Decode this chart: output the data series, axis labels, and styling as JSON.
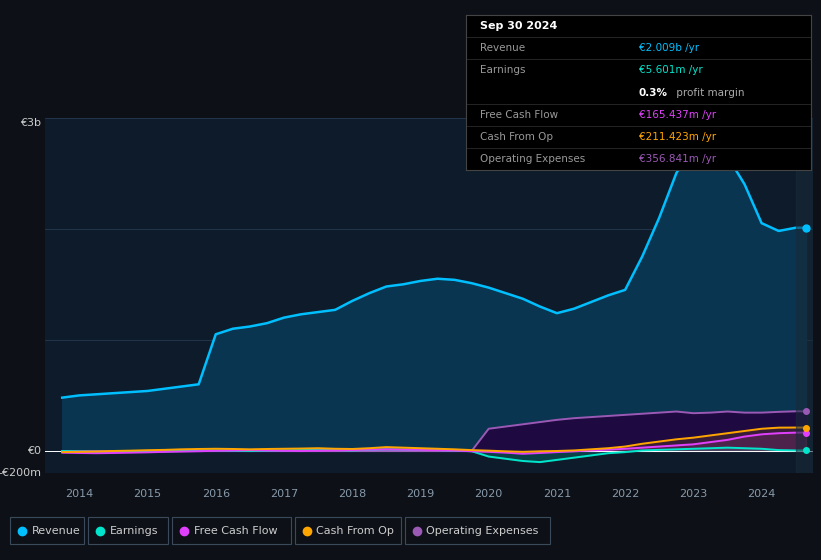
{
  "background_color": "#0d1117",
  "plot_bg_color": "#0d1b2a",
  "grid_color": "#253a50",
  "title_box": {
    "date": "Sep 30 2024",
    "revenue": "€2.009b /yr",
    "earnings": "€5.601m /yr",
    "margin": "0.3% profit margin",
    "fcf": "€165.437m /yr",
    "cash_from_op": "€211.423m /yr",
    "op_expenses": "€356.841m /yr"
  },
  "ylabel_top": "€3b",
  "ylabel_zero": "€0",
  "ylabel_neg": "-€200m",
  "years": [
    2013.75,
    2014.0,
    2014.25,
    2014.5,
    2014.75,
    2015.0,
    2015.25,
    2015.5,
    2015.75,
    2016.0,
    2016.25,
    2016.5,
    2016.75,
    2017.0,
    2017.25,
    2017.5,
    2017.75,
    2018.0,
    2018.25,
    2018.5,
    2018.75,
    2019.0,
    2019.25,
    2019.5,
    2019.75,
    2020.0,
    2020.25,
    2020.5,
    2020.75,
    2021.0,
    2021.25,
    2021.5,
    2021.75,
    2022.0,
    2022.25,
    2022.5,
    2022.75,
    2023.0,
    2023.25,
    2023.5,
    2023.75,
    2024.0,
    2024.25,
    2024.5,
    2024.65
  ],
  "revenue": [
    480,
    500,
    510,
    520,
    530,
    540,
    560,
    580,
    600,
    1050,
    1100,
    1120,
    1150,
    1200,
    1230,
    1250,
    1270,
    1350,
    1420,
    1480,
    1500,
    1530,
    1550,
    1540,
    1510,
    1470,
    1420,
    1370,
    1300,
    1240,
    1280,
    1340,
    1400,
    1450,
    1750,
    2100,
    2500,
    2750,
    2800,
    2650,
    2400,
    2050,
    1980,
    2009,
    2009
  ],
  "earnings": [
    0,
    -5,
    -8,
    -10,
    -8,
    -5,
    -3,
    0,
    3,
    5,
    3,
    0,
    3,
    5,
    8,
    10,
    8,
    5,
    10,
    15,
    12,
    10,
    8,
    3,
    -2,
    -50,
    -70,
    -90,
    -100,
    -80,
    -60,
    -40,
    -20,
    -10,
    5,
    10,
    15,
    20,
    25,
    30,
    25,
    20,
    8,
    5,
    5.6
  ],
  "fcf": [
    -15,
    -18,
    -20,
    -18,
    -15,
    -12,
    -8,
    -5,
    -2,
    2,
    5,
    8,
    5,
    2,
    0,
    3,
    5,
    8,
    12,
    15,
    12,
    10,
    7,
    3,
    -2,
    -8,
    -15,
    -25,
    -18,
    -10,
    -3,
    5,
    12,
    20,
    30,
    40,
    50,
    60,
    80,
    100,
    130,
    150,
    160,
    165,
    165
  ],
  "cash_from_op": [
    -10,
    -8,
    -5,
    0,
    3,
    7,
    10,
    15,
    18,
    20,
    18,
    15,
    18,
    20,
    22,
    25,
    20,
    18,
    25,
    35,
    30,
    25,
    20,
    15,
    8,
    3,
    -3,
    -8,
    -3,
    0,
    5,
    15,
    25,
    40,
    65,
    85,
    105,
    120,
    140,
    160,
    180,
    200,
    210,
    211,
    211
  ],
  "op_expenses": [
    0,
    0,
    0,
    0,
    0,
    0,
    0,
    0,
    0,
    0,
    0,
    0,
    0,
    0,
    0,
    0,
    0,
    0,
    0,
    0,
    0,
    0,
    0,
    0,
    0,
    200,
    220,
    240,
    260,
    280,
    295,
    305,
    315,
    325,
    335,
    345,
    355,
    340,
    345,
    355,
    345,
    345,
    352,
    357,
    357
  ],
  "revenue_color": "#00bfff",
  "earnings_color": "#00e5cc",
  "fcf_color": "#e040fb",
  "cash_from_op_color": "#ffa500",
  "op_expenses_color": "#9b59b6",
  "revenue_fill": "#0a3550",
  "op_expenses_fill": "#1e0a40",
  "legend": [
    "Revenue",
    "Earnings",
    "Free Cash Flow",
    "Cash From Op",
    "Operating Expenses"
  ],
  "ylim_min": -200,
  "ylim_max": 3000,
  "xlim_min": 2013.5,
  "xlim_max": 2024.75
}
